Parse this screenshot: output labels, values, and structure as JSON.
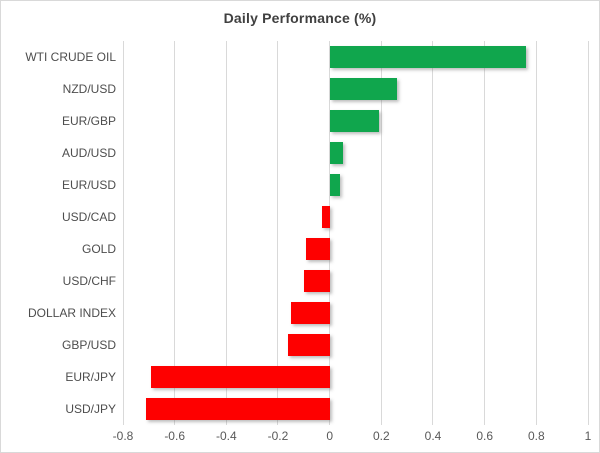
{
  "chart_data": {
    "type": "bar",
    "orientation": "horizontal",
    "title": "Daily Performance (%)",
    "xlabel": "",
    "ylabel": "",
    "categories": [
      "WTI CRUDE OIL",
      "NZD/USD",
      "EUR/GBP",
      "AUD/USD",
      "EUR/USD",
      "USD/CAD",
      "GOLD",
      "USD/CHF",
      "DOLLAR INDEX",
      "GBP/USD",
      "EUR/JPY",
      "USD/JPY"
    ],
    "values": [
      0.76,
      0.26,
      0.19,
      0.05,
      0.04,
      -0.03,
      -0.09,
      -0.1,
      -0.15,
      -0.16,
      -0.69,
      -0.71
    ],
    "xlim": [
      -0.8,
      1.0
    ],
    "x_ticks": [
      -0.8,
      -0.6,
      -0.4,
      -0.2,
      0,
      0.2,
      0.4,
      0.6,
      0.8,
      1
    ],
    "x_tick_labels": [
      "-0.8",
      "-0.6",
      "-0.4",
      "-0.2",
      "0",
      "0.2",
      "0.4",
      "0.6",
      "0.8",
      "1"
    ],
    "grid": true,
    "legend": false,
    "colors": {
      "positive": "#10a64d",
      "negative": "#fe0000",
      "gridline": "#d9d9d9",
      "title_text": "#404040",
      "axis_text": "#595959"
    }
  }
}
